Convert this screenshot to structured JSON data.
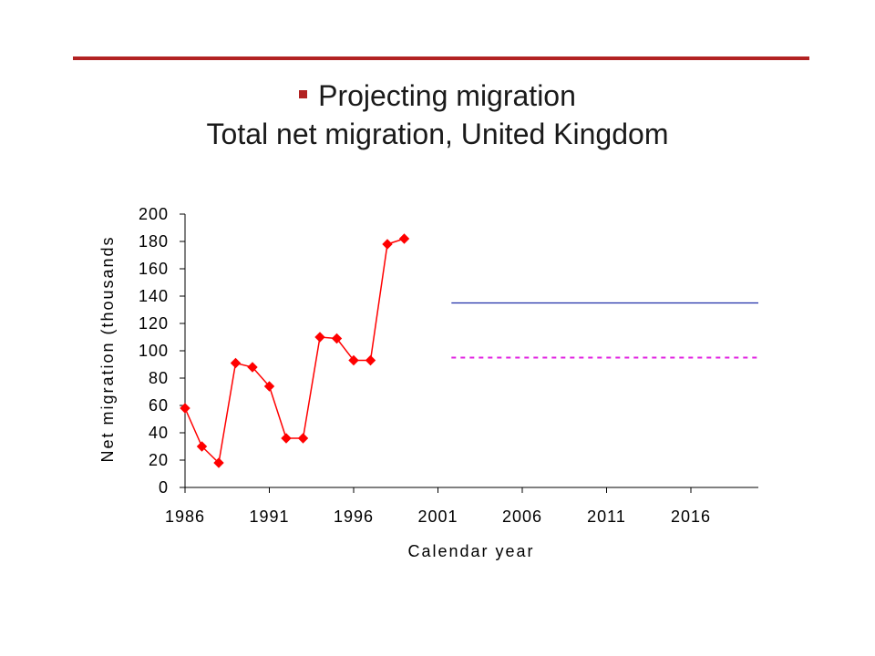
{
  "slide": {
    "title_line1": "Projecting migration",
    "title_line2": "Total net migration, United Kingdom",
    "accent_color": "#b22222"
  },
  "chart_data": {
    "type": "line",
    "title": "",
    "xlabel": "Calendar year",
    "ylabel": "Net migration (thousands",
    "xlim": [
      1986,
      2020
    ],
    "ylim": [
      0,
      200
    ],
    "x_ticks": [
      1986,
      1991,
      1996,
      2001,
      2006,
      2011,
      2016
    ],
    "y_ticks": [
      0,
      20,
      40,
      60,
      80,
      100,
      120,
      140,
      160,
      180,
      200
    ],
    "grid": false,
    "series": [
      {
        "color": "#ff0000",
        "marker": "diamond",
        "line_style": "solid",
        "x": [
          1986,
          1987,
          1988,
          1989,
          1990,
          1991,
          1992,
          1993,
          1994,
          1995,
          1996,
          1997,
          1998,
          1999
        ],
        "values": [
          58,
          30,
          18,
          91,
          88,
          74,
          36,
          36,
          110,
          109,
          93,
          93,
          178,
          182
        ]
      },
      {
        "color": "#1f2fa8",
        "marker": "none",
        "line_style": "solid",
        "x": [
          2001.8,
          2020
        ],
        "values": [
          135,
          135
        ]
      },
      {
        "color": "#e020e0",
        "marker": "none",
        "line_style": "dashed",
        "x": [
          2001.8,
          2020
        ],
        "values": [
          95,
          95
        ]
      }
    ]
  }
}
